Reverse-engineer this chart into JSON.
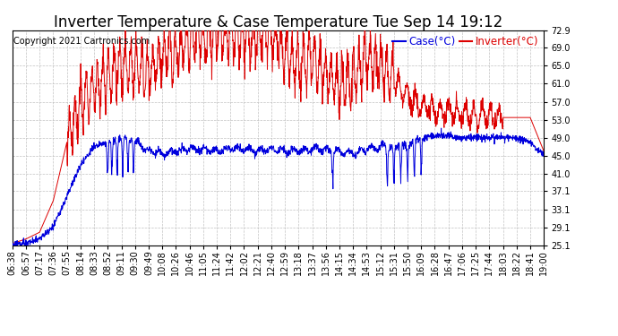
{
  "title": "Inverter Temperature & Case Temperature Tue Sep 14 19:12",
  "copyright": "Copyright 2021 Cartronics.com",
  "legend_case": "Case(°C)",
  "legend_inverter": "Inverter(°C)",
  "case_color": "#0000dd",
  "inverter_color": "#dd0000",
  "background_color": "#ffffff",
  "plot_bg_color": "#ffffff",
  "grid_color": "#bbbbbb",
  "ylim": [
    25.1,
    72.9
  ],
  "yticks": [
    25.1,
    29.1,
    33.1,
    37.1,
    41.0,
    45.0,
    49.0,
    53.0,
    57.0,
    61.0,
    65.0,
    69.0,
    72.9
  ],
  "title_fontsize": 12,
  "legend_fontsize": 8.5,
  "tick_fontsize": 7,
  "copyright_fontsize": 7
}
